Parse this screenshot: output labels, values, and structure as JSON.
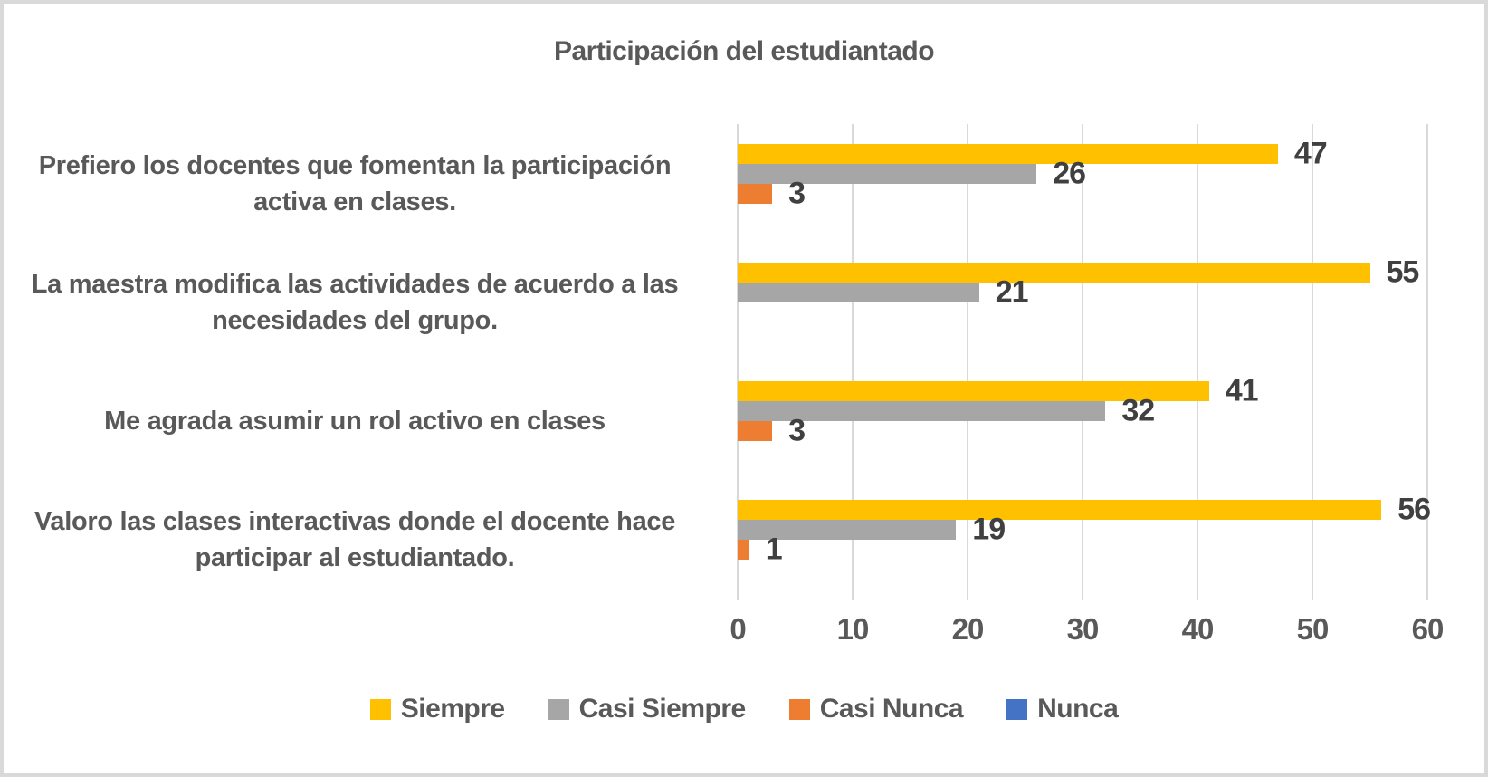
{
  "frame": {
    "background_color": "#ffffff",
    "border_color": "#d9d9d9"
  },
  "chart_data": {
    "type": "bar",
    "orientation": "horizontal",
    "title": "Participación del estudiantado",
    "categories": [
      "Prefiero los docentes que fomentan la participación activa en clases.",
      "La maestra modifica las actividades de acuerdo a las necesidades del grupo.",
      "Me agrada asumir un rol activo en clases",
      "Valoro las clases interactivas donde el docente hace participar al estudiantado."
    ],
    "series": [
      {
        "name": "Siempre",
        "color": "#FFC000",
        "values": [
          47,
          55,
          41,
          56
        ]
      },
      {
        "name": "Casi Siempre",
        "color": "#A6A6A6",
        "values": [
          26,
          21,
          32,
          19
        ]
      },
      {
        "name": "Casi Nunca",
        "color": "#ED7D31",
        "values": [
          3,
          0,
          3,
          1
        ]
      },
      {
        "name": "Nunca",
        "color": "#4472C4",
        "values": [
          0,
          0,
          0,
          0
        ]
      }
    ],
    "x_axis": {
      "min": 0,
      "max": 60,
      "tick_interval": 10,
      "ticks": [
        0,
        10,
        20,
        30,
        40,
        50,
        60
      ]
    },
    "gridlines": true,
    "gridline_color": "#d9d9d9",
    "data_labels": true,
    "data_label_color": "#404040",
    "text_color": "#595959",
    "legend_position": "bottom"
  }
}
